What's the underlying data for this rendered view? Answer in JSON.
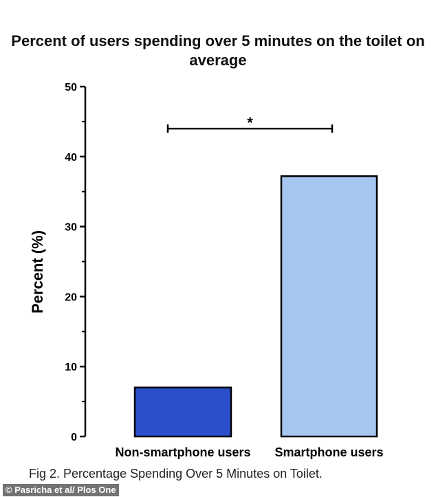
{
  "chart_data": {
    "type": "bar",
    "title": "Percent of users spending over 5 minutes on the toilet on average",
    "categories": [
      "Non-smartphone users",
      "Smartphone users"
    ],
    "values": [
      7,
      37.2
    ],
    "colors": [
      "#2b4fcb",
      "#a6c6ef"
    ],
    "ylabel": "Percent  (%)",
    "xlabel": "",
    "ylim": [
      0,
      50
    ],
    "yticks": [
      0,
      10,
      20,
      30,
      40,
      50
    ],
    "grid": false,
    "annotation": {
      "text": "*",
      "between": [
        0,
        1
      ],
      "level": 44
    }
  },
  "caption": "Fig 2.  Percentage Spending Over 5 Minutes on Toilet.",
  "credit": "© Pasricha et al/ Plos One"
}
